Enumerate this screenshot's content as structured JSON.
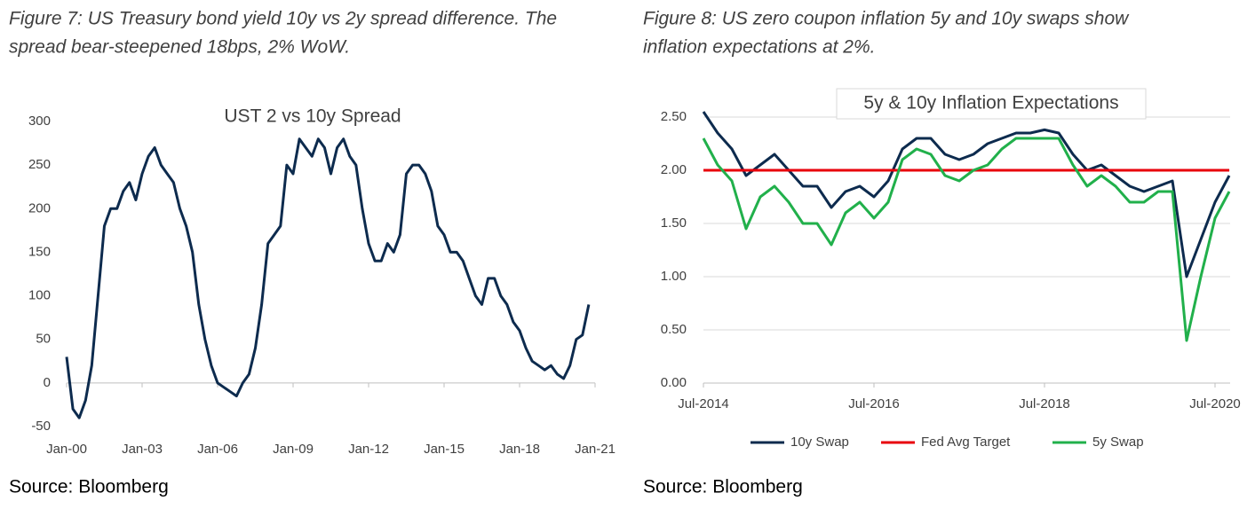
{
  "chart_data": [
    {
      "type": "line",
      "caption": [
        "Figure 7: US Treasury bond yield 10y vs 2y spread difference. The",
        "spread bear-steepened 18bps, 2% WoW."
      ],
      "title": "UST 2 vs 10y Spread",
      "source": "Source: Bloomberg",
      "x": [
        "Jan-00",
        "Apr-00",
        "Jul-00",
        "Oct-00",
        "Jan-01",
        "Apr-01",
        "Jul-01",
        "Oct-01",
        "Jan-02",
        "Apr-02",
        "Jul-02",
        "Oct-02",
        "Jan-03",
        "Apr-03",
        "Jul-03",
        "Oct-03",
        "Jan-04",
        "Apr-04",
        "Jul-04",
        "Oct-04",
        "Jan-05",
        "Apr-05",
        "Jul-05",
        "Oct-05",
        "Jan-06",
        "Apr-06",
        "Jul-06",
        "Oct-06",
        "Jan-07",
        "Apr-07",
        "Jul-07",
        "Oct-07",
        "Jan-08",
        "Apr-08",
        "Jul-08",
        "Oct-08",
        "Jan-09",
        "Apr-09",
        "Jul-09",
        "Oct-09",
        "Jan-10",
        "Apr-10",
        "Jul-10",
        "Oct-10",
        "Jan-11",
        "Apr-11",
        "Jul-11",
        "Oct-11",
        "Jan-12",
        "Apr-12",
        "Jul-12",
        "Oct-12",
        "Jan-13",
        "Apr-13",
        "Jul-13",
        "Oct-13",
        "Jan-14",
        "Apr-14",
        "Jul-14",
        "Oct-14",
        "Jan-15",
        "Apr-15",
        "Jul-15",
        "Oct-15",
        "Jan-16",
        "Apr-16",
        "Jul-16",
        "Oct-16",
        "Jan-17",
        "Apr-17",
        "Jul-17",
        "Oct-17",
        "Jan-18",
        "Apr-18",
        "Jul-18",
        "Oct-18",
        "Jan-19",
        "Apr-19",
        "Jul-19",
        "Oct-19",
        "Jan-20",
        "Apr-20",
        "Jul-20",
        "Oct-20",
        "Jan-21"
      ],
      "values": [
        30,
        -30,
        -40,
        -20,
        20,
        100,
        180,
        200,
        200,
        220,
        230,
        210,
        240,
        260,
        270,
        250,
        240,
        230,
        200,
        180,
        150,
        90,
        50,
        20,
        0,
        -5,
        -10,
        -15,
        0,
        10,
        40,
        90,
        160,
        170,
        180,
        250,
        240,
        280,
        270,
        260,
        280,
        270,
        240,
        270,
        280,
        260,
        250,
        200,
        160,
        140,
        140,
        160,
        150,
        170,
        240,
        250,
        250,
        240,
        220,
        180,
        170,
        150,
        150,
        140,
        120,
        100,
        90,
        120,
        120,
        100,
        90,
        70,
        60,
        40,
        25,
        20,
        15,
        20,
        10,
        5,
        20,
        50,
        55,
        90,
        null
      ],
      "color": "#0d2b4e",
      "ylim": [
        -50,
        300
      ],
      "yticks": [
        -50,
        0,
        50,
        100,
        150,
        200,
        250,
        300
      ],
      "xticks": [
        "Jan-00",
        "Jan-03",
        "Jan-06",
        "Jan-09",
        "Jan-12",
        "Jan-15",
        "Jan-18",
        "Jan-21"
      ],
      "grid": false
    },
    {
      "type": "line",
      "caption": [
        "Figure 8: US zero coupon inflation 5y and 10y swaps show",
        "inflation expectations at 2%."
      ],
      "title": "5y & 10y Inflation Expectations",
      "source": "Source: Bloomberg",
      "x": [
        "Jul-2014",
        "Sep-2014",
        "Nov-2014",
        "Jan-2015",
        "Mar-2015",
        "May-2015",
        "Jul-2015",
        "Sep-2015",
        "Nov-2015",
        "Jan-2016",
        "Mar-2016",
        "May-2016",
        "Jul-2016",
        "Sep-2016",
        "Nov-2016",
        "Jan-2017",
        "Mar-2017",
        "May-2017",
        "Jul-2017",
        "Sep-2017",
        "Nov-2017",
        "Jan-2018",
        "Mar-2018",
        "May-2018",
        "Jul-2018",
        "Sep-2018",
        "Nov-2018",
        "Jan-2019",
        "Mar-2019",
        "May-2019",
        "Jul-2019",
        "Sep-2019",
        "Nov-2019",
        "Jan-2020",
        "Mar-2020",
        "May-2020",
        "Jul-2020",
        "Sep-2020"
      ],
      "series": [
        {
          "name": "10y Swap",
          "color": "#0d2b4e",
          "values": [
            2.55,
            2.35,
            2.2,
            1.95,
            2.05,
            2.15,
            2.0,
            1.85,
            1.85,
            1.65,
            1.8,
            1.85,
            1.75,
            1.9,
            2.2,
            2.3,
            2.3,
            2.15,
            2.1,
            2.15,
            2.25,
            2.3,
            2.35,
            2.35,
            2.38,
            2.35,
            2.15,
            2.0,
            2.05,
            1.95,
            1.85,
            1.8,
            1.85,
            1.9,
            1.0,
            1.35,
            1.7,
            1.95
          ]
        },
        {
          "name": "Fed Avg Target",
          "color": "#e8000b",
          "values": [
            2,
            2,
            2,
            2,
            2,
            2,
            2,
            2,
            2,
            2,
            2,
            2,
            2,
            2,
            2,
            2,
            2,
            2,
            2,
            2,
            2,
            2,
            2,
            2,
            2,
            2,
            2,
            2,
            2,
            2,
            2,
            2,
            2,
            2,
            2,
            2,
            2,
            2
          ]
        },
        {
          "name": "5y Swap",
          "color": "#21b04b",
          "values": [
            2.3,
            2.05,
            1.9,
            1.45,
            1.75,
            1.85,
            1.7,
            1.5,
            1.5,
            1.3,
            1.6,
            1.7,
            1.55,
            1.7,
            2.1,
            2.2,
            2.15,
            1.95,
            1.9,
            2.0,
            2.05,
            2.2,
            2.3,
            2.3,
            2.3,
            2.3,
            2.05,
            1.85,
            1.95,
            1.85,
            1.7,
            1.7,
            1.8,
            1.8,
            0.4,
            1.0,
            1.55,
            1.8
          ]
        }
      ],
      "ylim": [
        0,
        2.5
      ],
      "yticks": [
        {
          "value": 0,
          "label": "0.00"
        },
        {
          "value": 0.5,
          "label": "0.50"
        },
        {
          "value": 1,
          "label": "1.00"
        },
        {
          "value": 1.5,
          "label": "1.50"
        },
        {
          "value": 2,
          "label": "2.00"
        },
        {
          "value": 2.5,
          "label": "2.50"
        }
      ],
      "xticks": [
        "Jul-2014",
        "Jul-2016",
        "Jul-2018",
        "Jul-2020"
      ],
      "grid": true,
      "legend": "bottom"
    }
  ]
}
